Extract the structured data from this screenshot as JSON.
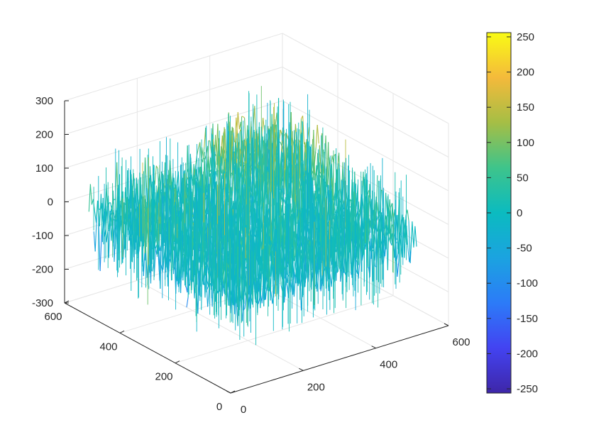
{
  "chart_data": {
    "type": "surface",
    "title": "",
    "xlabel": "",
    "ylabel": "",
    "zlabel": "",
    "grid": true,
    "colormap": "parula",
    "x_ticks": [
      "0",
      "200",
      "400",
      "600"
    ],
    "y_ticks": [
      "0",
      "200",
      "400",
      "600"
    ],
    "z_ticks": [
      "-300",
      "-200",
      "-100",
      "0",
      "100",
      "200",
      "300"
    ],
    "xlim": [
      0,
      600
    ],
    "ylim": [
      0,
      600
    ],
    "zlim": [
      -300,
      300
    ],
    "colorbar": {
      "ticks": [
        "-250",
        "-200",
        "-150",
        "-100",
        "-50",
        "0",
        "50",
        "100",
        "150",
        "200",
        "250"
      ],
      "range": [
        -256,
        256
      ],
      "placement": "right"
    },
    "surface_extent": {
      "x": [
        0,
        512
      ],
      "y": [
        0,
        512
      ]
    },
    "noise_amplitude": 100,
    "raised_region": {
      "x": [
        300,
        512
      ],
      "y": [
        280,
        512
      ],
      "offset": 60
    },
    "colors": {
      "low": "#3e26a8",
      "mid": "#1fbfb8",
      "high": "#f9fb15",
      "axis": "#262626",
      "grid": "#e6e6e6"
    }
  }
}
